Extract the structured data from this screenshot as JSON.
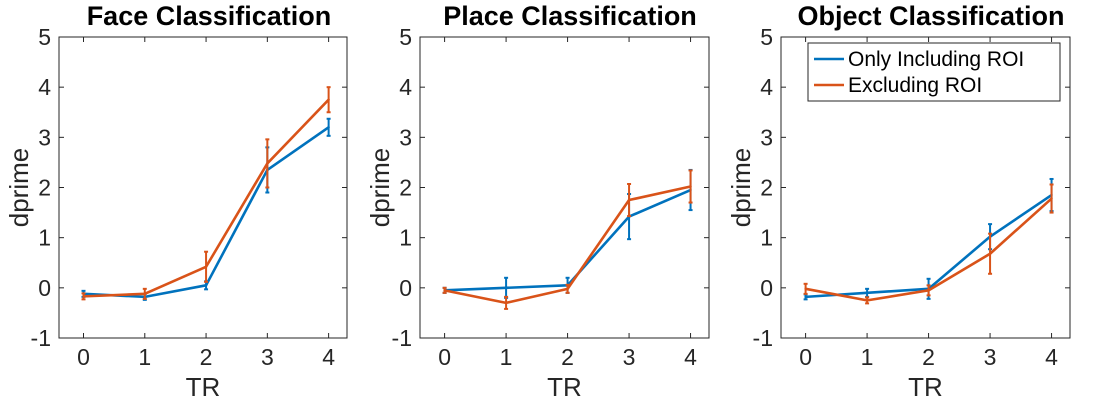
{
  "colors": {
    "series_1": "#0072BD",
    "series_2": "#D95319",
    "axis": "#262626"
  },
  "chart_data": [
    {
      "type": "line",
      "title": "Face Classification",
      "xlabel": "TR",
      "ylabel": "dprime",
      "xlim": [
        -0.4,
        4.3
      ],
      "ylim": [
        -1,
        5
      ],
      "xticks": [
        0,
        1,
        2,
        3,
        4
      ],
      "yticks": [
        -1,
        0,
        1,
        2,
        3,
        4,
        5
      ],
      "grid": false,
      "legend": null,
      "x": [
        0,
        1,
        2,
        3,
        4
      ],
      "series": [
        {
          "name": "Only Including ROI",
          "values": [
            -0.12,
            -0.18,
            0.05,
            2.35,
            3.2
          ],
          "errors": [
            0.06,
            0.06,
            0.08,
            0.45,
            0.17
          ]
        },
        {
          "name": "Excluding ROI",
          "values": [
            -0.17,
            -0.12,
            0.42,
            2.48,
            3.75
          ],
          "errors": [
            0.06,
            0.1,
            0.3,
            0.48,
            0.25
          ]
        }
      ]
    },
    {
      "type": "line",
      "title": "Place Classification",
      "xlabel": "TR",
      "ylabel": "dprime",
      "xlim": [
        -0.4,
        4.3
      ],
      "ylim": [
        -1,
        5
      ],
      "xticks": [
        0,
        1,
        2,
        3,
        4
      ],
      "yticks": [
        -1,
        0,
        1,
        2,
        3,
        4,
        5
      ],
      "grid": false,
      "legend": null,
      "x": [
        0,
        1,
        2,
        3,
        4
      ],
      "series": [
        {
          "name": "Only Including ROI",
          "values": [
            -0.05,
            0.0,
            0.05,
            1.42,
            1.95
          ],
          "errors": [
            0.05,
            0.2,
            0.15,
            0.45,
            0.4
          ]
        },
        {
          "name": "Excluding ROI",
          "values": [
            -0.05,
            -0.3,
            -0.02,
            1.75,
            2.02
          ],
          "errors": [
            0.05,
            0.12,
            0.08,
            0.32,
            0.32
          ]
        }
      ]
    },
    {
      "type": "line",
      "title": "Object Classification",
      "xlabel": "TR",
      "ylabel": "dprime",
      "xlim": [
        -0.4,
        4.3
      ],
      "ylim": [
        -1,
        5
      ],
      "xticks": [
        0,
        1,
        2,
        3,
        4
      ],
      "yticks": [
        -1,
        0,
        1,
        2,
        3,
        4,
        5
      ],
      "grid": false,
      "legend": "top-right",
      "x": [
        0,
        1,
        2,
        3,
        4
      ],
      "series": [
        {
          "name": "Only Including ROI",
          "values": [
            -0.18,
            -0.1,
            -0.02,
            1.02,
            1.85
          ],
          "errors": [
            0.05,
            0.08,
            0.2,
            0.25,
            0.32
          ]
        },
        {
          "name": "Excluding ROI",
          "values": [
            -0.02,
            -0.25,
            -0.05,
            0.68,
            1.78
          ],
          "errors": [
            0.1,
            0.06,
            0.1,
            0.4,
            0.28
          ]
        }
      ]
    }
  ]
}
